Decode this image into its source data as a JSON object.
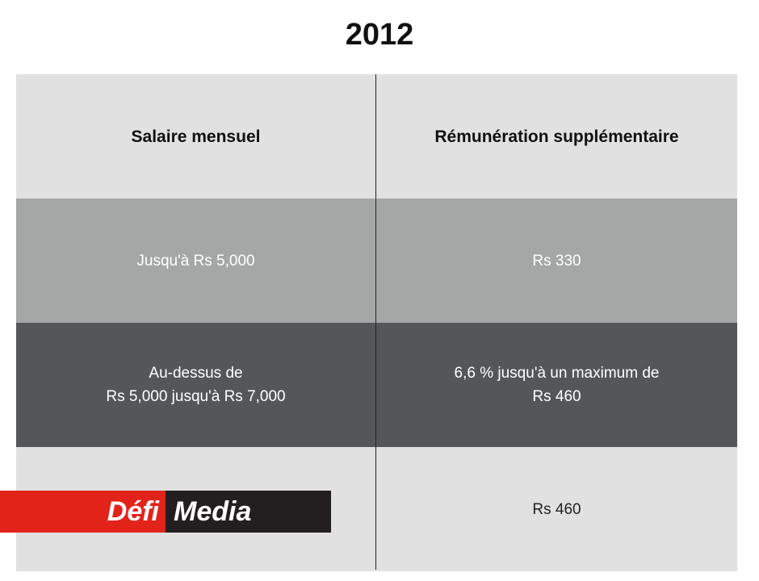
{
  "title": "2012",
  "table": {
    "header": [
      "Salaire mensuel",
      "Rémunération supplémentaire"
    ],
    "rows": [
      [
        [
          "Jusqu'à Rs 5,000"
        ],
        [
          "Rs 330"
        ]
      ],
      [
        [
          "Au-dessus de",
          "Rs 5,000 jusqu'à Rs 7,000"
        ],
        [
          "6,6 % jusqu'à un maximum de",
          "Rs 460"
        ]
      ],
      [
        null,
        [
          "Rs 460"
        ]
      ]
    ]
  },
  "logo": {
    "part1": "Défi",
    "part2": "Media"
  }
}
